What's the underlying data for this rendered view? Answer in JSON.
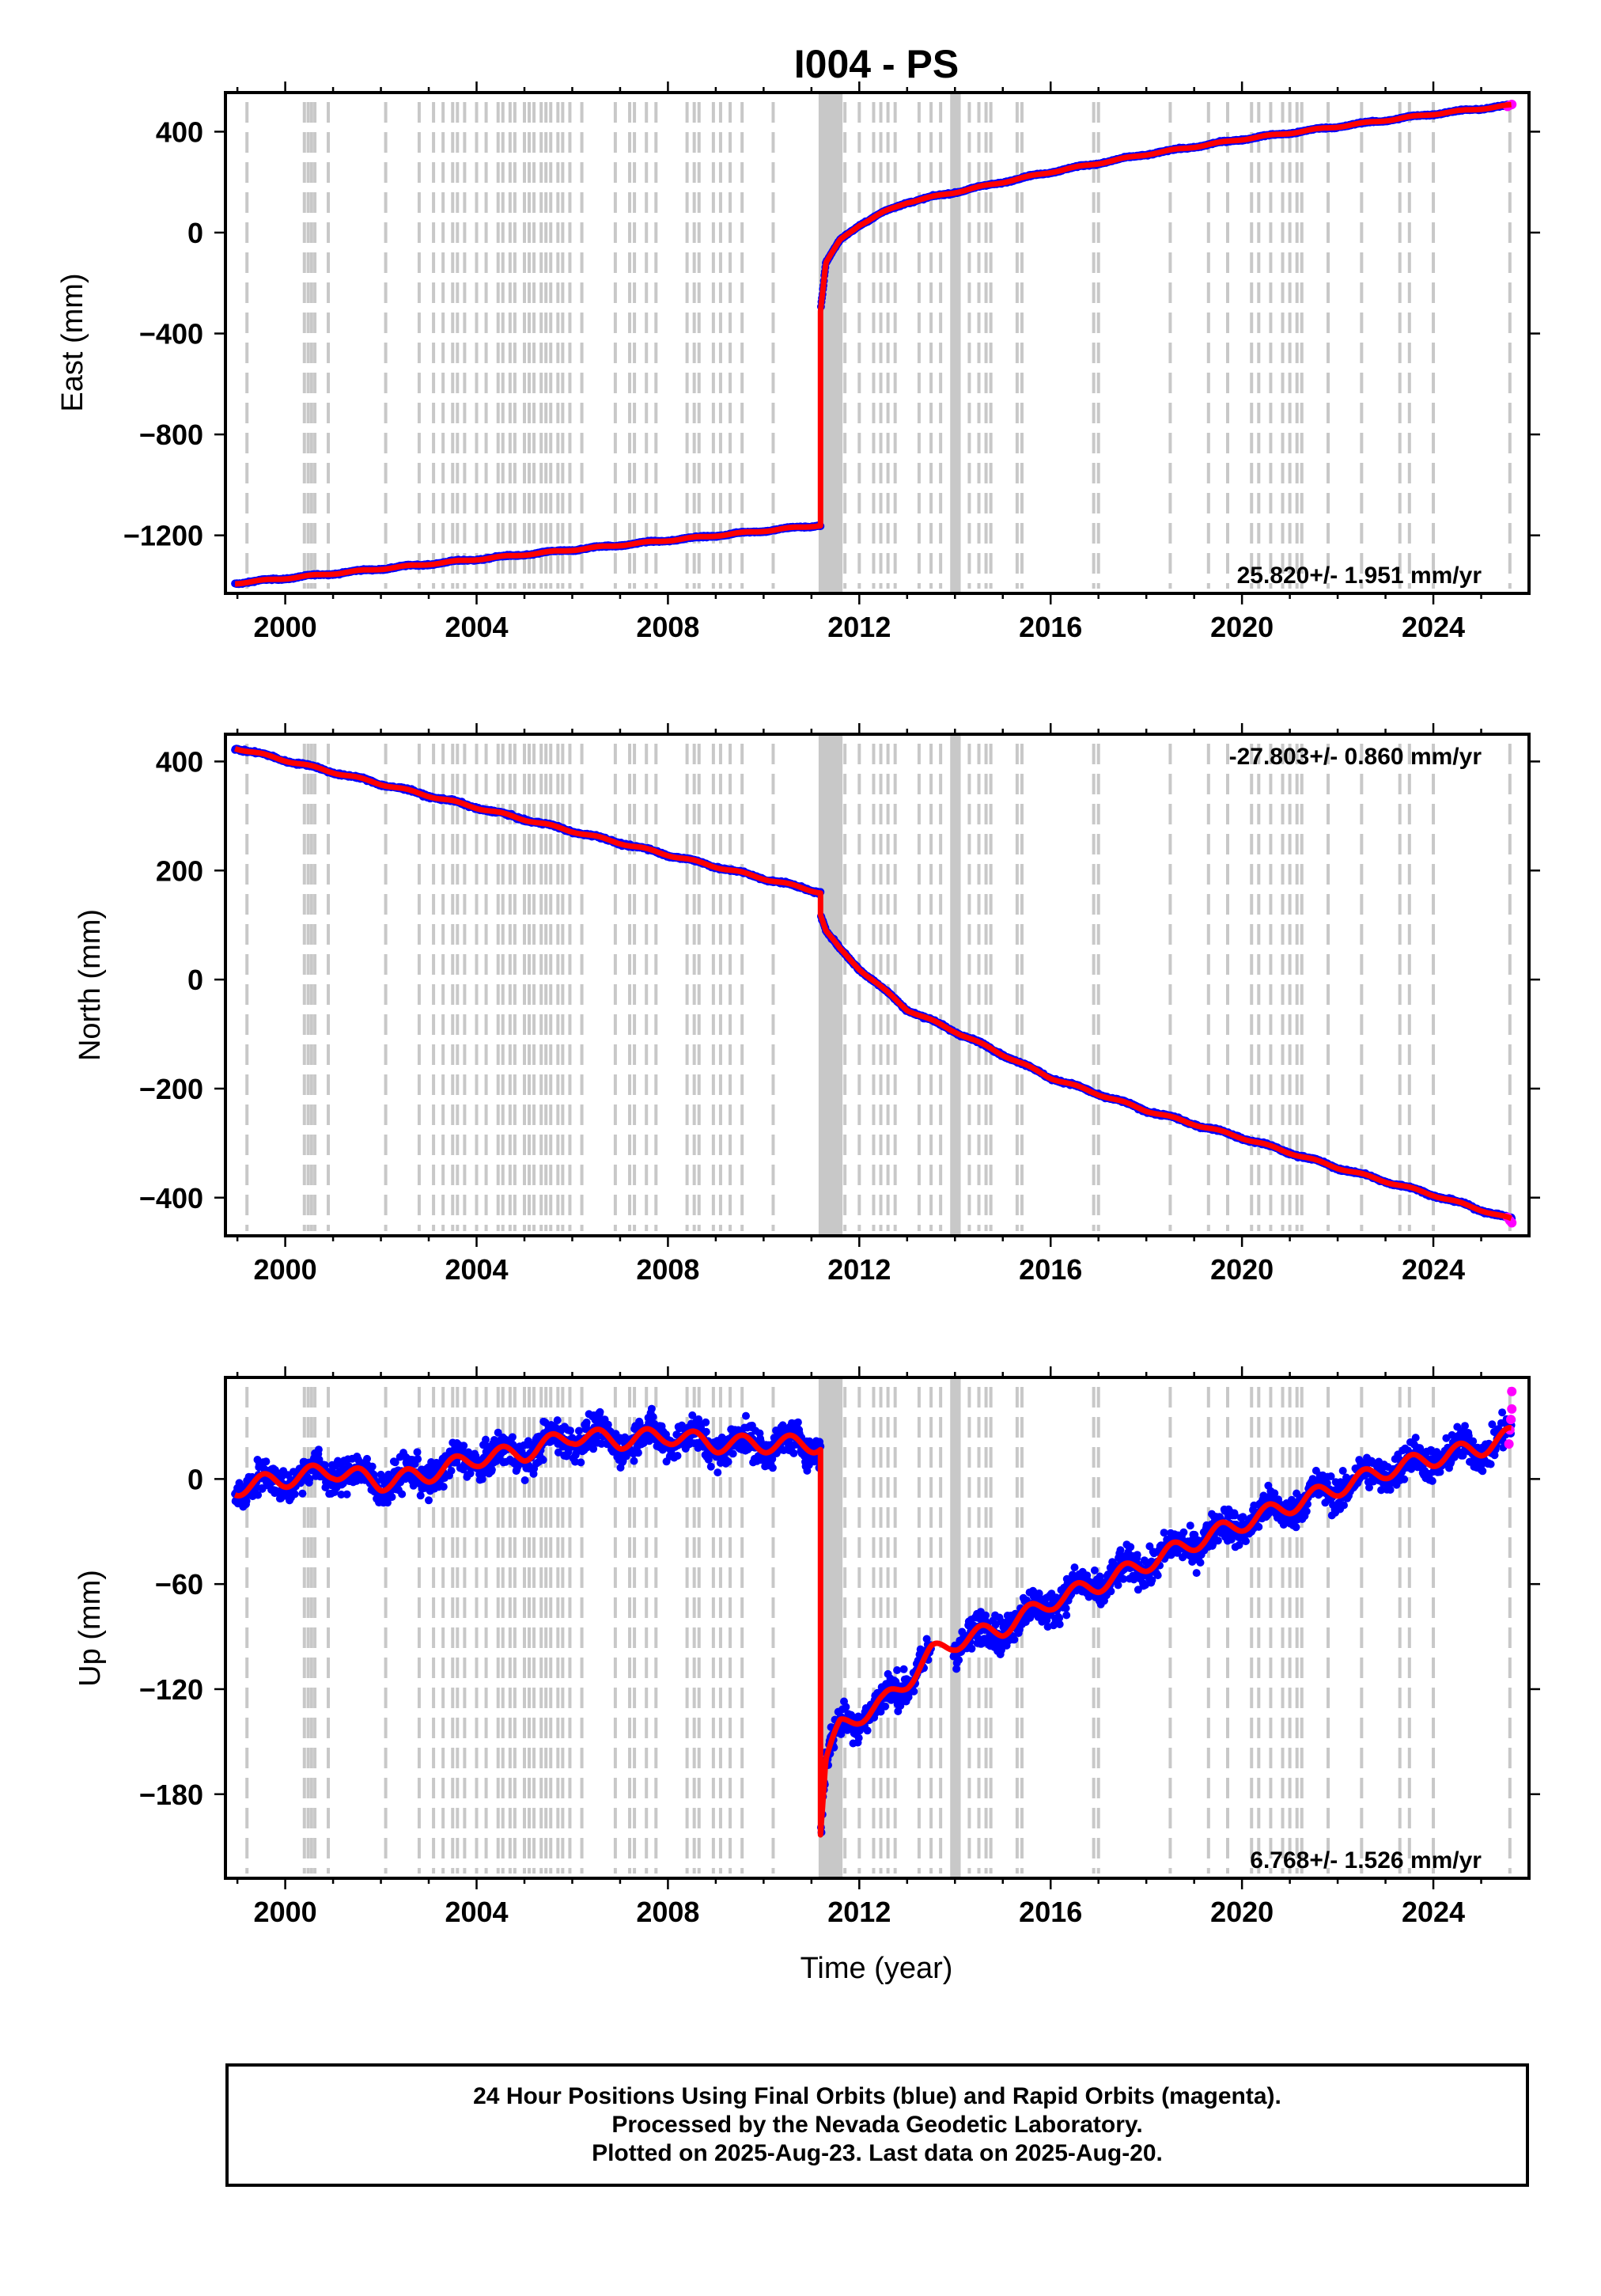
{
  "title": "I004 - PS",
  "x_axis_label": "Time (year)",
  "colors": {
    "final_orbits": "#0000ff",
    "rapid_orbits": "#ff00ff",
    "fit": "#ff0000",
    "event_lines": "#c8c8c8"
  },
  "footer": {
    "line1": "24 Hour Positions Using Final Orbits (blue) and Rapid Orbits (magenta).",
    "line2": "Processed by the Nevada Geodetic Laboratory.",
    "line3": "Plotted on 2025-Aug-23. Last data on 2025-Aug-20."
  },
  "chart_data": [
    {
      "type": "scatter",
      "component": "east",
      "ylabel": "East (mm)",
      "rate_label": "25.820+/- 1.951 mm/yr",
      "xlim": [
        1998.75,
        2026.0
      ],
      "ylim": [
        -1430,
        555
      ],
      "xticks": [
        2000,
        2004,
        2008,
        2012,
        2016,
        2020,
        2024
      ],
      "yticks": [
        400,
        0,
        -400,
        -800,
        -1200
      ],
      "ytick_labels": [
        "400",
        "0",
        "−400",
        "−800",
        "−1200"
      ],
      "data_start": 1998.95,
      "data_end": 2025.64,
      "step_time": 2011.19,
      "pre_event": {
        "x": [
          1998.95,
          2011.18
        ],
        "y": [
          -1390,
          -1160
        ]
      },
      "post_event": {
        "x": [
          2011.19,
          2011.3,
          2011.6,
          2012.0,
          2012.5,
          2013.0,
          2014.0,
          2016.0,
          2018.0,
          2020.0,
          2022.0,
          2024.0,
          2025.64
        ],
        "y": [
          -310,
          -120,
          -30,
          30,
          80,
          120,
          160,
          240,
          310,
          370,
          420,
          470,
          505
        ]
      },
      "rapid_points": {
        "x": [
          2025.55,
          2025.6,
          2025.64
        ],
        "y": [
          500,
          505,
          508
        ]
      }
    },
    {
      "type": "scatter",
      "component": "north",
      "ylabel": "North (mm)",
      "rate_label": "-27.803+/- 0.860 mm/yr",
      "xlim": [
        1998.75,
        2026.0
      ],
      "ylim": [
        -470,
        450
      ],
      "xticks": [
        2000,
        2004,
        2008,
        2012,
        2016,
        2020,
        2024
      ],
      "yticks": [
        400,
        200,
        0,
        -200,
        -400
      ],
      "ytick_labels": [
        "400",
        "200",
        "0",
        "−200",
        "−400"
      ],
      "data_start": 1998.95,
      "data_end": 2025.64,
      "step_time": 2011.19,
      "pre_event": {
        "x": [
          1998.95,
          2011.18
        ],
        "y": [
          425,
          160
        ]
      },
      "post_event": {
        "x": [
          2011.19,
          2011.3,
          2011.6,
          2012.0,
          2013.0,
          2014.0,
          2016.0,
          2018.0,
          2020.0,
          2022.0,
          2024.0,
          2025.64
        ],
        "y": [
          120,
          90,
          55,
          20,
          -55,
          -95,
          -180,
          -240,
          -290,
          -345,
          -395,
          -440
        ]
      },
      "rapid_points": {
        "x": [
          2025.55,
          2025.6,
          2025.64
        ],
        "y": [
          -436,
          -442,
          -446
        ]
      }
    },
    {
      "type": "scatter",
      "component": "up",
      "ylabel": "Up (mm)",
      "rate_label": "6.768+/- 1.526 mm/yr",
      "xlim": [
        1998.75,
        2026.0
      ],
      "ylim": [
        -228,
        58
      ],
      "xticks": [
        2000,
        2004,
        2008,
        2012,
        2016,
        2020,
        2024
      ],
      "yticks": [
        0,
        -60,
        -120,
        -180
      ],
      "ytick_labels": [
        "0",
        "−60",
        "−120",
        "−180"
      ],
      "data_start": 1998.95,
      "data_end": 2025.64,
      "step_time": 2011.19,
      "pre_event": {
        "x": [
          1998.95,
          2001.0,
          2002.0,
          2003.0,
          2004.0,
          2005.0,
          2006.0,
          2007.0,
          2008.0,
          2009.0,
          2010.0,
          2011.18
        ],
        "y": [
          -5,
          5,
          -2,
          3,
          12,
          15,
          25,
          22,
          25,
          20,
          20,
          20
        ]
      },
      "post_event": {
        "x": [
          2011.19,
          2011.3,
          2011.6,
          2012.0,
          2012.5,
          2013.0,
          2013.5,
          2014.0,
          2015.0,
          2016.0,
          2017.0,
          2018.0,
          2019.0,
          2020.0,
          2021.0,
          2022.0,
          2023.0,
          2024.0,
          2025.0,
          2025.64
        ],
        "y": [
          -200,
          -160,
          -142,
          -135,
          -128,
          -115,
          -100,
          -93,
          -85,
          -70,
          -60,
          -48,
          -36,
          -25,
          -15,
          -5,
          5,
          12,
          18,
          25
        ]
      },
      "rapid_points": {
        "x": [
          2025.58,
          2025.6,
          2025.62,
          2025.64,
          2025.64
        ],
        "y": [
          20,
          28,
          34,
          40,
          50
        ]
      }
    }
  ],
  "event_lines": [
    1999.2,
    2000.4,
    2000.48,
    2000.55,
    2000.62,
    2000.9,
    2002.1,
    2002.8,
    2003.1,
    2003.3,
    2003.5,
    2003.6,
    2003.75,
    2004.0,
    2004.2,
    2004.45,
    2004.55,
    2004.7,
    2004.8,
    2005.0,
    2005.1,
    2005.2,
    2005.35,
    2005.45,
    2005.55,
    2005.7,
    2005.8,
    2005.95,
    2006.2,
    2006.9,
    2007.2,
    2007.3,
    2007.55,
    2007.75,
    2008.4,
    2008.55,
    2008.65,
    2008.95,
    2009.1,
    2009.3,
    2009.55,
    2010.2,
    2011.7,
    2012.0,
    2012.3,
    2012.45,
    2012.6,
    2012.75,
    2013.25,
    2013.5,
    2013.7,
    2014.3,
    2014.5,
    2014.65,
    2014.75,
    2015.3,
    2015.4,
    2016.9,
    2017.0,
    2018.5,
    2019.3,
    2019.7,
    2020.2,
    2020.35,
    2020.6,
    2020.85,
    2021.0,
    2021.15,
    2021.25,
    2021.8,
    2022.5,
    2023.3,
    2023.5,
    2024.0,
    2025.6
  ],
  "dense_event_bands": [
    [
      2011.15,
      2011.65
    ],
    [
      2013.9,
      2014.12
    ]
  ]
}
